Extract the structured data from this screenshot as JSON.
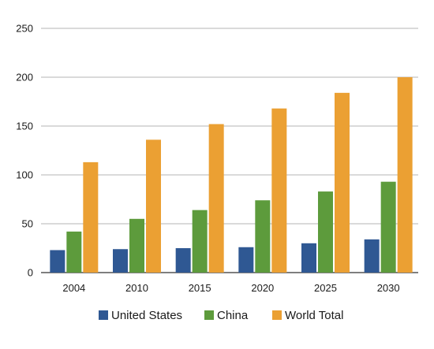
{
  "chart_data": {
    "type": "bar",
    "categories": [
      "2004",
      "2010",
      "2015",
      "2020",
      "2025",
      "2030"
    ],
    "series": [
      {
        "name": "United States",
        "color": "#2f5893",
        "values": [
          23,
          24,
          25,
          26,
          30,
          34
        ]
      },
      {
        "name": "China",
        "color": "#5d9b3c",
        "values": [
          42,
          55,
          64,
          74,
          83,
          93
        ]
      },
      {
        "name": "World Total",
        "color": "#eba033",
        "values": [
          113,
          136,
          152,
          168,
          184,
          200
        ]
      }
    ],
    "ylim": [
      0,
      250
    ],
    "yticks": [
      "0",
      "50",
      "100",
      "150",
      "200",
      "250"
    ],
    "grid": true,
    "legend_position": "bottom"
  }
}
